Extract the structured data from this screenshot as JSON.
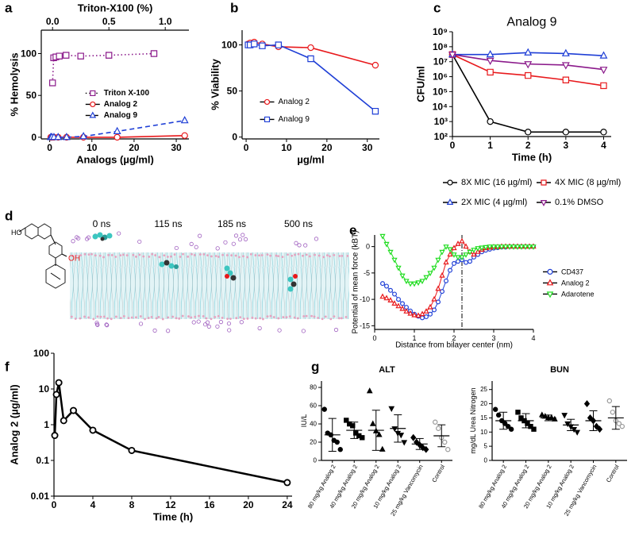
{
  "chart_data": [
    {
      "type": "line",
      "panel_label": "a",
      "x2label": "Triton-X100 (%)",
      "xlabel": "Analogs (µg/ml)",
      "ylabel": "% Hemolysis",
      "xlim": [
        -2,
        33
      ],
      "xticks": [
        0,
        10,
        20,
        30
      ],
      "x2lim": [
        -0.1,
        1.21
      ],
      "x2ticks": [
        {
          "value": 0,
          "label": "0.0"
        },
        0.5,
        {
          "value": 1,
          "label": "1.0"
        }
      ],
      "ylim": [
        -2,
        128
      ],
      "yticks": [
        0,
        50,
        100
      ],
      "legend": "center right",
      "series": [
        {
          "name": "Triton X-100",
          "color": "#8b1a8b",
          "marker": "square",
          "line_style": "dotted",
          "axis": "x2",
          "x": [
            0,
            0.01,
            0.03,
            0.06,
            0.12,
            0.25,
            0.5,
            0.9
          ],
          "values": [
            65,
            95,
            96,
            97,
            98,
            97,
            98,
            100
          ]
        },
        {
          "name": "Analog 2",
          "color": "#e8191c",
          "marker": "circle",
          "line_style": "solid",
          "x": [
            0.25,
            0.5,
            1,
            2,
            4,
            8,
            16,
            32
          ],
          "values": [
            0,
            0,
            0,
            0,
            0,
            0,
            0,
            2
          ]
        },
        {
          "name": "Analog 9",
          "color": "#1f3fd6",
          "marker": "triangle",
          "line_style": "dashed",
          "x": [
            0.25,
            0.5,
            1,
            2,
            4,
            8,
            16,
            32
          ],
          "values": [
            0,
            0,
            0,
            0,
            0,
            1,
            7,
            20
          ]
        }
      ]
    },
    {
      "type": "line",
      "panel_label": "b",
      "xlabel": "µg/ml",
      "ylabel": "% Viability",
      "xlim": [
        -1,
        33
      ],
      "xticks": [
        0,
        10,
        20,
        30
      ],
      "ylim": [
        -2,
        116
      ],
      "yticks": [
        0,
        50,
        100
      ],
      "legend": "lower left",
      "x": [
        0.5,
        1,
        2,
        4,
        8,
        16,
        32
      ],
      "series": [
        {
          "name": "Analog 2",
          "color": "#e8191c",
          "marker": "circle",
          "line_style": "solid",
          "values": [
            101,
            102,
            103,
            101,
            98,
            97,
            78
          ]
        },
        {
          "name": "Analog 9",
          "color": "#1f3fd6",
          "marker": "square",
          "line_style": "solid",
          "values": [
            100,
            100,
            101,
            99,
            100,
            85,
            28
          ]
        }
      ]
    },
    {
      "type": "line",
      "panel_label": "c",
      "title": "Analog 9",
      "xlabel": "Time (h)",
      "ylabel": "CFU/ml",
      "yscale": "log",
      "xlim": [
        0,
        4.2
      ],
      "xticks": [
        0,
        1,
        2,
        3,
        4
      ],
      "ylim": [
        100,
        1000000000
      ],
      "yticks": [
        {
          "value": 100,
          "label": "10²"
        },
        {
          "value": 1000,
          "label": "10³"
        },
        {
          "value": 10000,
          "label": "10⁴"
        },
        {
          "value": 100000,
          "label": "10⁵"
        },
        {
          "value": 1000000,
          "label": "10⁶"
        },
        {
          "value": 10000000,
          "label": "10⁷"
        },
        {
          "value": 100000000,
          "label": "10⁸"
        },
        {
          "value": 1000000000,
          "label": "10⁹"
        }
      ],
      "legend": "below",
      "x": [
        0,
        1,
        2,
        3,
        4
      ],
      "series": [
        {
          "name": "8X MIC (16 µg/ml)",
          "color": "#000000",
          "marker": "circle",
          "line_style": "solid",
          "values": [
            30000000,
            1000,
            200,
            200,
            200
          ]
        },
        {
          "name": "4X MIC (8 µg/ml)",
          "color": "#e8191c",
          "marker": "square",
          "line_style": "solid",
          "values": [
            30000000,
            2000000,
            1200000,
            600000,
            250000
          ]
        },
        {
          "name": "2X MIC (4 µg/ml)",
          "color": "#1f3fd6",
          "marker": "triangle",
          "line_style": "solid",
          "values": [
            30000000,
            30000000,
            40000000,
            35000000,
            25000000
          ]
        },
        {
          "name": "0.1% DMSO",
          "color": "#8b1a8b",
          "marker": "triangle-down",
          "line_style": "solid",
          "values": [
            30000000,
            12000000,
            7000000,
            6000000,
            3000000
          ]
        }
      ]
    },
    {
      "type": "line",
      "panel_label": "e",
      "xlabel": "Distance from bilayer center (nm)",
      "ylabel": "Potential of mean force (kBT)",
      "xlim": [
        0,
        4
      ],
      "xticks": [
        0,
        1,
        2,
        3,
        4
      ],
      "ylim": [
        -15.7,
        2.2
      ],
      "yticks": [
        -15,
        -10,
        -5,
        0
      ],
      "legend": "right",
      "reference_x": 2.2,
      "x": [
        0.2,
        0.3,
        0.4,
        0.5,
        0.6,
        0.7,
        0.8,
        0.9,
        1.0,
        1.1,
        1.2,
        1.3,
        1.4,
        1.5,
        1.6,
        1.7,
        1.8,
        1.9,
        2.0,
        2.1,
        2.2,
        2.3,
        2.4,
        2.5,
        2.6,
        2.7,
        2.8,
        2.9,
        3.0,
        3.1,
        3.2,
        3.3,
        3.4,
        3.5,
        3.6,
        3.7,
        3.8,
        3.9,
        4.0
      ],
      "series": [
        {
          "name": "CD437",
          "color": "#1f3fd6",
          "marker": "circle",
          "line_style": "solid",
          "values": [
            -7,
            -7.5,
            -8.3,
            -9,
            -10,
            -10.8,
            -11.5,
            -12.2,
            -12.8,
            -13.2,
            -13.5,
            -13.3,
            -12.8,
            -12,
            -10.5,
            -8.5,
            -6.5,
            -4.5,
            -3.2,
            -2.8,
            -2.5,
            -3,
            -2.8,
            -2,
            -1.5,
            -1,
            -0.7,
            -0.5,
            -0.3,
            -0.2,
            -0.1,
            -0.1,
            0,
            0,
            0,
            0,
            0,
            0,
            0
          ]
        },
        {
          "name": "Analog 2",
          "color": "#e8191c",
          "marker": "triangle",
          "line_style": "solid",
          "values": [
            -9.5,
            -9.8,
            -10.2,
            -10.8,
            -11.3,
            -11.8,
            -12.3,
            -12.7,
            -13,
            -13.1,
            -12.8,
            -12.3,
            -11.5,
            -10,
            -8,
            -5.5,
            -3,
            -1.5,
            -0.3,
            0.5,
            1,
            0,
            -1,
            -1.5,
            -1,
            -0.6,
            -0.3,
            -0.2,
            -0.1,
            -0.1,
            0,
            0,
            0,
            0,
            0,
            0,
            0,
            0,
            0
          ]
        },
        {
          "name": "Adarotene",
          "color": "#22dd22",
          "marker": "triangle-down",
          "line_style": "solid",
          "values": [
            2,
            0.5,
            -1,
            -2.5,
            -4,
            -5.5,
            -6.5,
            -7,
            -7,
            -6.8,
            -6.5,
            -5.8,
            -5,
            -4,
            -2.5,
            -1,
            0,
            -0.5,
            -1.5,
            -2,
            -2,
            -1.5,
            -1,
            -0.6,
            -0.3,
            -0.2,
            -0.1,
            0,
            0,
            0,
            0,
            0,
            0,
            0,
            0,
            0,
            0,
            0,
            0
          ]
        }
      ]
    },
    {
      "type": "line",
      "panel_label": "f",
      "xlabel": "Time (h)",
      "ylabel": "Analog 2 (µg/ml)",
      "yscale": "log",
      "xlim": [
        0,
        24.5
      ],
      "xticks": [
        0,
        4,
        8,
        12,
        16,
        20,
        24
      ],
      "ylim": [
        0.01,
        100
      ],
      "yticks": [
        0.01,
        0.1,
        1,
        10,
        100
      ],
      "color": "#000000",
      "marker": "circle",
      "line_style": "solid",
      "x": [
        0.083,
        0.25,
        0.5,
        1,
        2,
        4,
        8,
        24
      ],
      "values": [
        0.5,
        7,
        15,
        1.3,
        2.5,
        0.7,
        0.19,
        0.024
      ]
    },
    {
      "type": "dot",
      "panel_label": "g",
      "title": "ALT",
      "ylabel": "IU/L",
      "ylim": [
        0,
        87
      ],
      "yticks": [
        0,
        20,
        40,
        60,
        80
      ],
      "categories": [
        "80 mg/kg Analog 2",
        "40 mg/kg Analog 2",
        "20 mg/kg Analog 2",
        "10 mg/kg Analog 2",
        "25 mg/kg Vancomycin",
        "Control"
      ],
      "points": [
        [
          56,
          30,
          28,
          22,
          20,
          12
        ],
        [
          44,
          40,
          38,
          30,
          27,
          25
        ],
        [
          76,
          40,
          32,
          28,
          12
        ],
        [
          57,
          35,
          30,
          28,
          20
        ],
        [
          25,
          20,
          17,
          14,
          12
        ],
        [
          42,
          35,
          25,
          20,
          12
        ]
      ],
      "means": [
        28,
        33,
        33,
        35,
        18,
        27
      ],
      "sd": [
        18,
        9,
        22,
        15,
        6,
        12
      ],
      "markers": [
        "circle",
        "square",
        "triangle",
        "triangle-down",
        "diamond",
        "circle"
      ],
      "marker_colors": [
        "#000000",
        "#000000",
        "#000000",
        "#000000",
        "#000000",
        "#999999"
      ],
      "marker_open": [
        false,
        false,
        false,
        false,
        false,
        true
      ]
    },
    {
      "type": "dot",
      "title": "BUN",
      "ylabel": "mg/dL Urea Nitrogen",
      "ylim": [
        0,
        28
      ],
      "yticks": [
        0,
        5,
        10,
        15,
        20,
        25
      ],
      "categories": [
        "80 mg/kg Analog 2",
        "40 mg/kg Analog 2",
        "20 mg/kg Analog 2",
        "10 mg/kg Analog 2",
        "25 mg/kg Vancomycin",
        "Control"
      ],
      "points": [
        [
          18,
          16,
          14,
          13,
          12,
          11
        ],
        [
          17,
          15,
          14,
          13,
          12,
          11
        ],
        [
          16,
          15.5,
          15,
          15,
          14.5
        ],
        [
          16,
          13,
          12,
          11,
          10
        ],
        [
          20,
          15,
          14,
          12,
          11
        ],
        [
          21,
          17,
          14,
          13,
          12
        ]
      ],
      "means": [
        14,
        14,
        15,
        12.5,
        14,
        15
      ],
      "sd": [
        3,
        2.5,
        1,
        2,
        3.5,
        4
      ],
      "markers": [
        "circle",
        "square",
        "triangle",
        "triangle-down",
        "diamond",
        "circle"
      ],
      "marker_colors": [
        "#000000",
        "#000000",
        "#000000",
        "#000000",
        "#000000",
        "#999999"
      ],
      "marker_open": [
        false,
        false,
        false,
        false,
        false,
        true
      ]
    }
  ],
  "simulation": {
    "panel_label": "d",
    "times": [
      "0 ns",
      "115 ns",
      "185 ns",
      "500 ns"
    ],
    "atom_labels": [
      "HO",
      "OH"
    ]
  }
}
